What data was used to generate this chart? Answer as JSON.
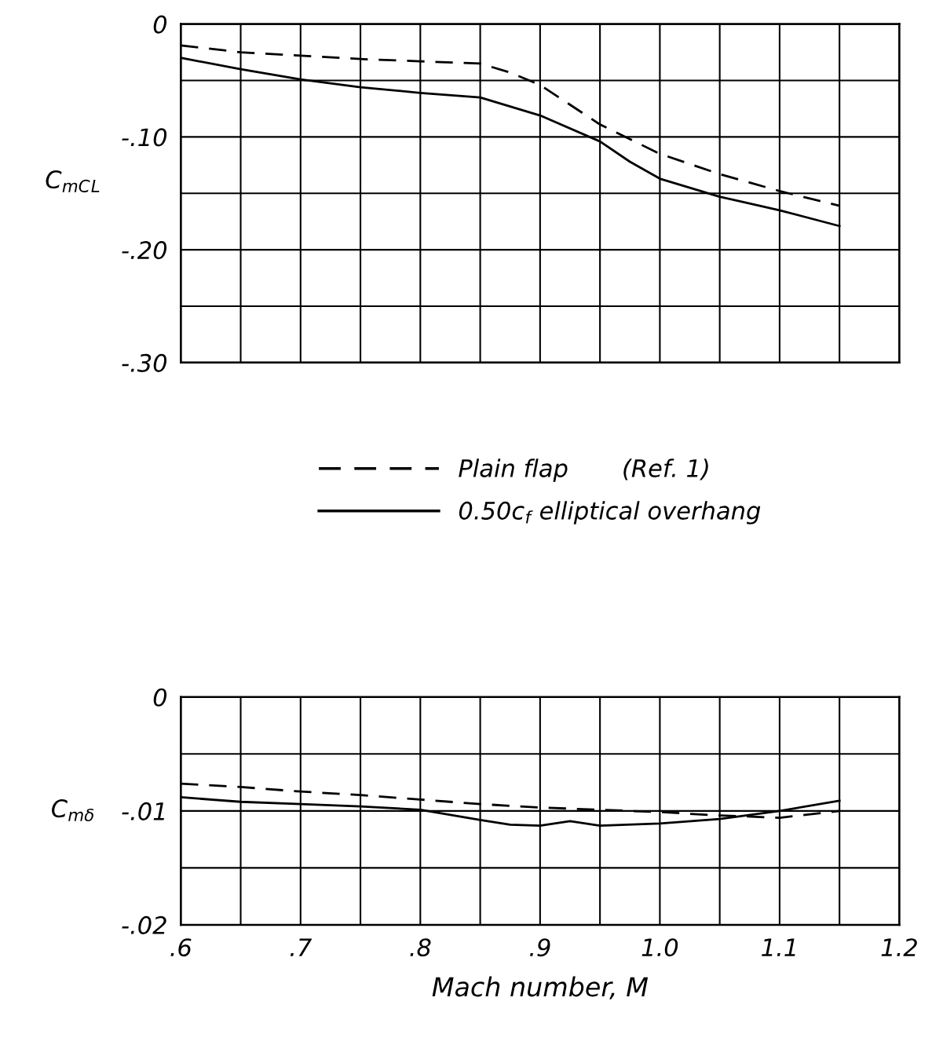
{
  "chart_data": [
    {
      "type": "line",
      "ylabel": "C$_{mC}$$_{L}$",
      "xlim": [
        0.6,
        1.2
      ],
      "xticks": [
        0.6,
        {
          "value": 0.65,
          "label": null
        },
        0.7,
        {
          "value": 0.75,
          "label": null
        },
        0.8,
        {
          "value": 0.85,
          "label": null
        },
        0.9,
        {
          "value": 0.95,
          "label": null
        },
        1.0,
        {
          "value": 1.05,
          "label": null
        },
        1.1,
        {
          "value": 1.15,
          "label": null
        },
        1.2
      ],
      "ylim": [
        -0.3,
        0
      ],
      "yticks": [
        {
          "value": 0,
          "label": "0"
        },
        {
          "value": -0.05,
          "label": null
        },
        {
          "value": -0.1,
          "label": "-.10"
        },
        {
          "value": -0.15,
          "label": null
        },
        {
          "value": -0.2,
          "label": "-.20"
        },
        {
          "value": -0.25,
          "label": null
        },
        {
          "value": -0.3,
          "label": "-.30"
        }
      ],
      "tick_labels": "y",
      "grid": true,
      "legend": "bottom",
      "marker": "none",
      "series": [
        {
          "name": "Plain flap       (Ref. 1)",
          "color": "#000000",
          "line_style": "dashed",
          "x": [
            0.6,
            0.65,
            0.7,
            0.75,
            0.8,
            0.85,
            0.875,
            0.9,
            0.95,
            1.0,
            1.05,
            1.1,
            1.15
          ],
          "values": [
            -0.019,
            -0.025,
            -0.028,
            -0.031,
            -0.033,
            -0.035,
            -0.043,
            -0.054,
            -0.089,
            -0.115,
            -0.133,
            -0.148,
            -0.161
          ]
        },
        {
          "name": "0.50c$_{f}$ elliptical overhang",
          "color": "#000000",
          "line_style": "solid",
          "x": [
            0.6,
            0.65,
            0.7,
            0.75,
            0.8,
            0.85,
            0.9,
            0.95,
            0.975,
            1.0,
            1.05,
            1.1,
            1.15
          ],
          "values": [
            -0.03,
            -0.04,
            -0.049,
            -0.056,
            -0.061,
            -0.065,
            -0.081,
            -0.104,
            -0.122,
            -0.137,
            -0.153,
            -0.165,
            -0.179
          ]
        }
      ]
    },
    {
      "type": "line",
      "ylabel": "C$_{mδ}$",
      "xlabel": "Mach number, M",
      "xlim": [
        0.6,
        1.2
      ],
      "xticks": [
        {
          "value": 0.6,
          "label": ".6"
        },
        {
          "value": 0.65,
          "label": null
        },
        {
          "value": 0.7,
          "label": ".7"
        },
        {
          "value": 0.75,
          "label": null
        },
        {
          "value": 0.8,
          "label": ".8"
        },
        {
          "value": 0.85,
          "label": null
        },
        {
          "value": 0.9,
          "label": ".9"
        },
        {
          "value": 0.95,
          "label": null
        },
        {
          "value": 1.0,
          "label": "1.0"
        },
        {
          "value": 1.05,
          "label": null
        },
        {
          "value": 1.1,
          "label": "1.1"
        },
        {
          "value": 1.15,
          "label": null
        },
        {
          "value": 1.2,
          "label": "1.2"
        }
      ],
      "ylim": [
        -0.02,
        0
      ],
      "yticks": [
        {
          "value": 0,
          "label": "0"
        },
        {
          "value": -0.005,
          "label": null
        },
        {
          "value": -0.01,
          "label": "-.01"
        },
        {
          "value": -0.015,
          "label": null
        },
        {
          "value": -0.02,
          "label": "-.02"
        }
      ],
      "grid": true,
      "marker": "none",
      "series": [
        {
          "color": "#000000",
          "line_style": "dashed",
          "x": [
            0.6,
            0.65,
            0.7,
            0.75,
            0.8,
            0.85,
            0.9,
            0.95,
            1.0,
            1.05,
            1.1,
            1.15
          ],
          "values": [
            -0.0076,
            -0.0079,
            -0.0083,
            -0.0086,
            -0.009,
            -0.0094,
            -0.0097,
            -0.0099,
            -0.0101,
            -0.0104,
            -0.0106,
            -0.01
          ]
        },
        {
          "color": "#000000",
          "line_style": "solid",
          "x": [
            0.6,
            0.65,
            0.7,
            0.75,
            0.8,
            0.85,
            0.875,
            0.9,
            0.925,
            0.95,
            1.0,
            1.05,
            1.1,
            1.15
          ],
          "values": [
            -0.0088,
            -0.0092,
            -0.0094,
            -0.0096,
            -0.0099,
            -0.0108,
            -0.0112,
            -0.0113,
            -0.0109,
            -0.0113,
            -0.0111,
            -0.0107,
            -0.01,
            -0.0091
          ]
        }
      ]
    }
  ]
}
